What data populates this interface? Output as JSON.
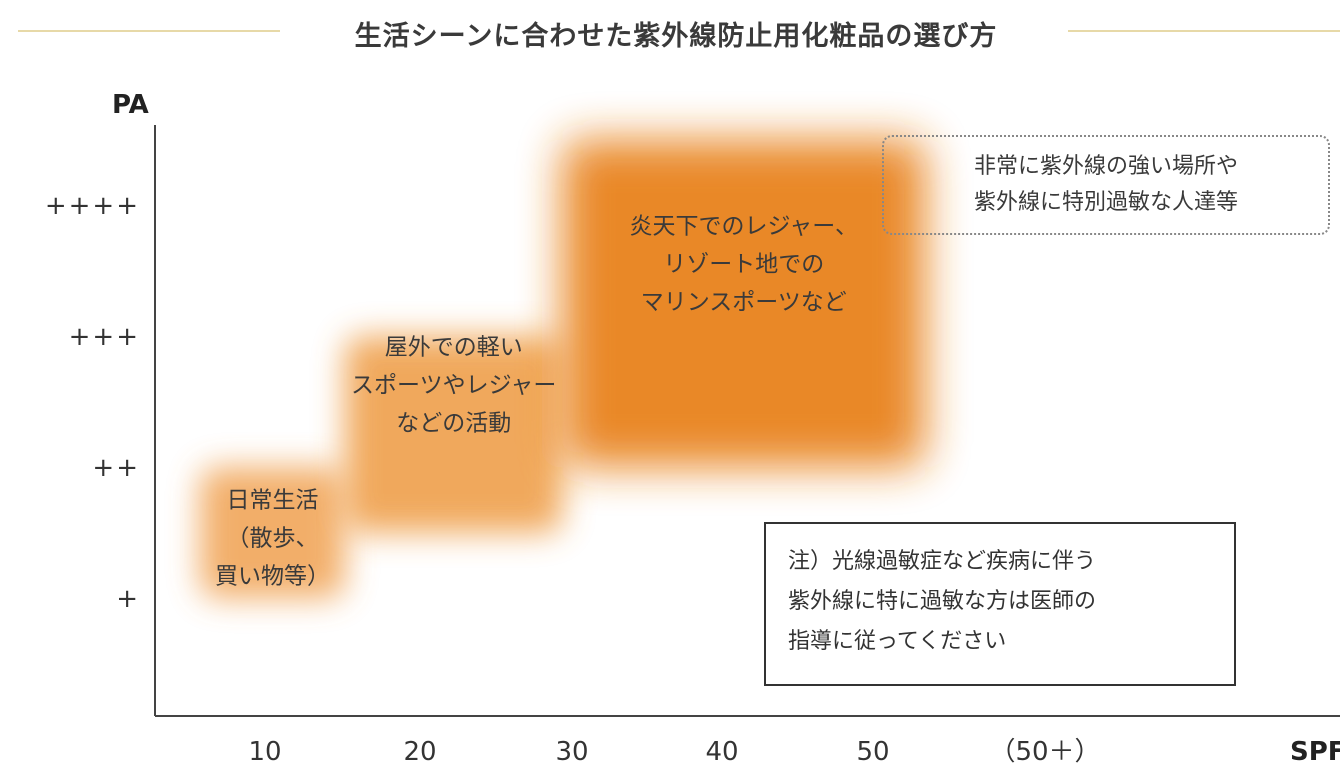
{
  "chart_data": {
    "type": "area",
    "title": "生活シーンに合わせた紫外線防止用化粧品の選び方",
    "xlabel": "SPF",
    "ylabel": "PA",
    "x_ticks": [
      "10",
      "20",
      "30",
      "40",
      "50",
      "（50＋）"
    ],
    "y_ticks": [
      "+",
      "++",
      "+++",
      "++++"
    ],
    "regions": [
      {
        "name": "daily",
        "label_lines": [
          "日常生活",
          "（散歩、",
          "買い物等）"
        ],
        "spf_range": [
          5,
          15
        ],
        "pa_range": [
          1,
          2
        ],
        "color": "#f0a050"
      },
      {
        "name": "outdoor-light",
        "label_lines": [
          "屋外での軽い",
          "スポーツやレジャー",
          "などの活動"
        ],
        "spf_range": [
          15,
          30
        ],
        "pa_range": [
          1.5,
          3
        ],
        "color": "#ee9a40"
      },
      {
        "name": "marine",
        "label_lines": [
          "炎天下でのレジャー、",
          "リゾート地での",
          "マリンスポーツなど"
        ],
        "spf_range": [
          30,
          55
        ],
        "pa_range": [
          2,
          4.5
        ],
        "color": "#e8821e"
      }
    ],
    "annotations": [
      {
        "name": "high-uv-note",
        "label_lines": [
          "非常に紫外線の強い場所や",
          "紫外線に特別過敏な人達等"
        ]
      },
      {
        "name": "physician-note",
        "label_lines": [
          "注）光線過敏症など疾病に伴う",
          "紫外線に特に過敏な方は医師の",
          "指導に従ってください"
        ]
      }
    ],
    "grid": false,
    "legend": "none"
  }
}
